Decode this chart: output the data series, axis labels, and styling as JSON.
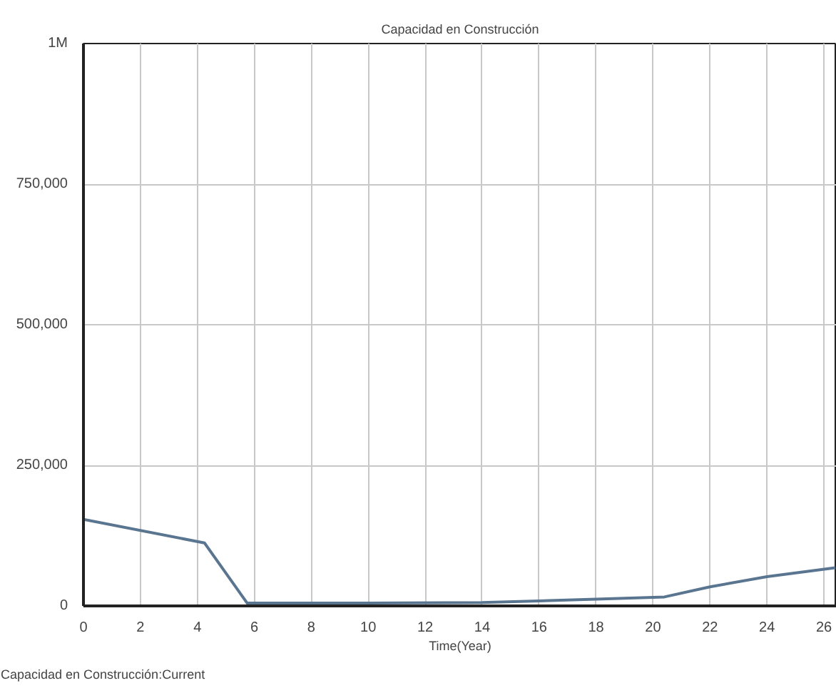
{
  "chart_data": {
    "type": "line",
    "title": "Capacidad en Construcción",
    "xlabel": "Time(Year)",
    "annotations": [
      "Capacidad en Construcción:Current"
    ],
    "x": [
      0,
      4.25,
      5.75,
      10,
      14,
      18,
      20.4,
      22,
      24,
      26.4
    ],
    "series": [
      {
        "color": "#5a7590",
        "values": [
          154000,
          112000,
          5000,
          5000,
          6000,
          12000,
          16000,
          34000,
          52000,
          68000
        ]
      }
    ],
    "xlim": [
      0,
      26.45
    ],
    "ylim": [
      0,
      1000000
    ],
    "xticks": [
      0,
      2,
      4,
      6,
      8,
      10,
      12,
      14,
      16,
      18,
      20,
      22,
      24,
      26
    ],
    "yticks": [
      0,
      {
        "value": 250000,
        "label": "250,000"
      },
      {
        "value": 500000,
        "label": "500,000"
      },
      {
        "value": 750000,
        "label": "750,000"
      },
      {
        "value": 1000000,
        "label": "1M"
      }
    ],
    "grid": true,
    "line_style": "solid"
  }
}
